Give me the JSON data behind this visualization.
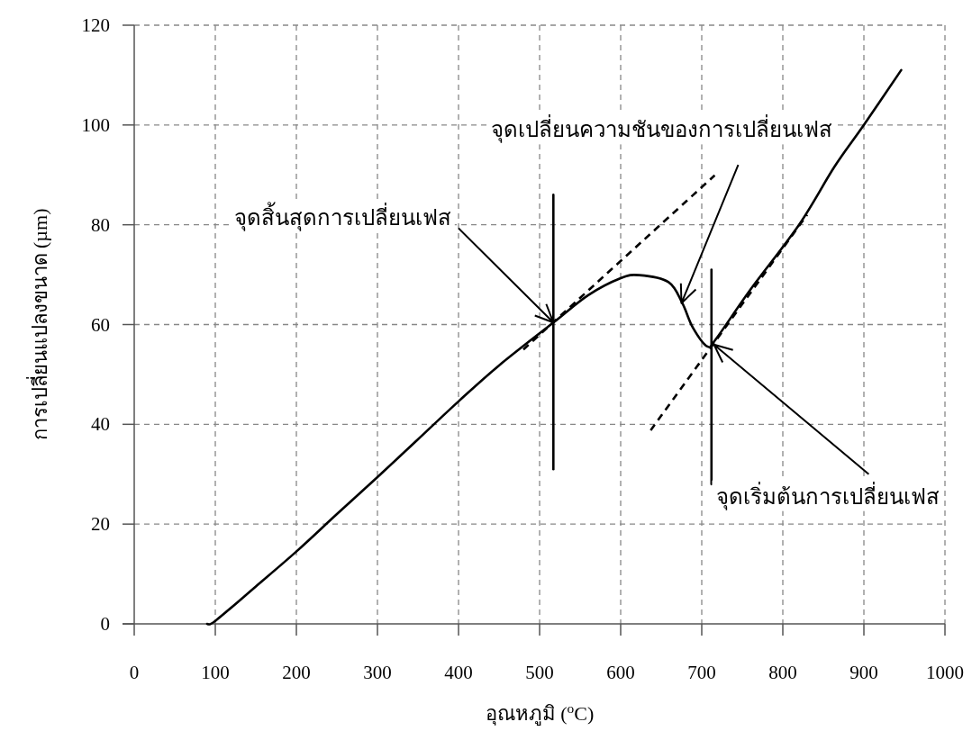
{
  "chart_data": {
    "type": "line",
    "xlabel": "อุณหภูมิ ($^{o}$C)",
    "ylabel": "การเปลี่ยนแปลงขนาด (µm)",
    "xlim": [
      0,
      1000
    ],
    "ylim": [
      0,
      120
    ],
    "xticks": [
      0,
      100,
      200,
      300,
      400,
      500,
      600,
      700,
      800,
      900,
      1000
    ],
    "yticks": [
      0,
      20,
      40,
      60,
      80,
      100,
      120
    ],
    "grid": true,
    "series": [
      {
        "color": "#000000",
        "line_style": "solid",
        "x": [
          90,
          100,
          150,
          200,
          250,
          300,
          350,
          400,
          450,
          517,
          560,
          600,
          623,
          659,
          676,
          689,
          707,
          718,
          760,
          820,
          864,
          900,
          946
        ],
        "values": [
          0,
          0.6,
          7.5,
          14.5,
          22,
          29.4,
          37,
          44.6,
          51.8,
          60.4,
          65.9,
          69.3,
          69.9,
          68.5,
          64.3,
          59.4,
          55.6,
          57.2,
          67,
          80,
          91.7,
          100,
          111
        ]
      },
      {
        "color": "#000000",
        "line_style": "dashed",
        "x": [
          480,
          716
        ],
        "values": [
          55,
          89.9
        ]
      },
      {
        "color": "#000000",
        "line_style": "dashed",
        "x": [
          637,
          830
        ],
        "values": [
          38.8,
          82
        ]
      },
      {
        "color": "#000000",
        "line_style": "solid",
        "x": [
          517,
          517
        ],
        "values": [
          31,
          86
        ]
      },
      {
        "color": "#000000",
        "line_style": "solid",
        "x": [
          712,
          712
        ],
        "values": [
          28,
          71
        ]
      }
    ],
    "annotations": [
      {
        "text": "จุดสิ้นสุดการเปลี่ยนเฟส",
        "x": 517,
        "y": 60.4
      },
      {
        "text": "จุดเปลี่ยนความชันของการเปลี่ยนเฟส",
        "x": 675,
        "y": 64.3
      },
      {
        "text": "จุดเริ่มต้นการเปลี่ยนเฟส",
        "x": 715,
        "y": 56
      }
    ]
  }
}
